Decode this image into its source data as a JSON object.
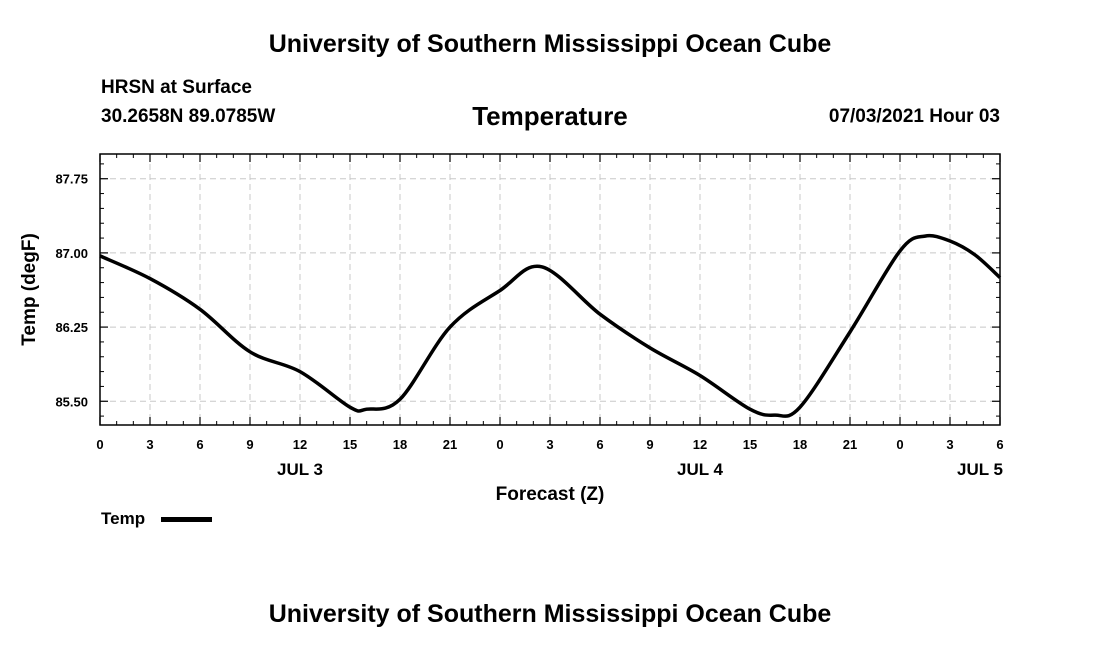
{
  "header": {
    "title": "University of Southern Mississippi Ocean Cube",
    "station": "HRSN at Surface",
    "coords": "30.2658N  89.0785W",
    "chart_title": "Temperature",
    "datetime": "07/03/2021 Hour 03"
  },
  "footer": {
    "title": "University of Southern Mississippi Ocean Cube"
  },
  "legend": {
    "label": "Temp",
    "color": "#000000"
  },
  "chart_data": {
    "type": "line",
    "title": "Temperature",
    "xlabel": "Forecast (Z)",
    "ylabel": "Temp (degF)",
    "xlim": [
      0,
      54
    ],
    "ylim": [
      85.26,
      88.0
    ],
    "x_ticks": [
      0,
      3,
      6,
      9,
      12,
      15,
      18,
      21,
      24,
      27,
      30,
      33,
      36,
      39,
      42,
      45,
      48,
      51,
      54
    ],
    "x_tick_labels": [
      "0",
      "3",
      "6",
      "9",
      "12",
      "15",
      "18",
      "21",
      "0",
      "3",
      "6",
      "9",
      "12",
      "15",
      "18",
      "21",
      "0",
      "3",
      "6"
    ],
    "y_ticks": [
      85.5,
      86.25,
      87.0,
      87.75
    ],
    "y_tick_labels": [
      "85.50",
      "86.25",
      "87.00",
      "87.75"
    ],
    "day_labels": [
      {
        "x": 12,
        "label": "JUL 3"
      },
      {
        "x": 36,
        "label": "JUL 4"
      },
      {
        "x": 52.8,
        "label": "JUL 5"
      }
    ],
    "grid": true,
    "legend_position": "bottom-left",
    "series": [
      {
        "name": "Temp",
        "color": "#000000",
        "x": [
          0,
          3,
          6,
          9,
          12,
          15,
          16,
          18,
          21,
          24,
          26.5,
          30,
          33,
          36,
          39,
          40.5,
          42,
          45,
          48,
          49.5,
          51,
          52.5,
          54
        ],
        "y": [
          86.97,
          86.74,
          86.43,
          86.0,
          85.8,
          85.44,
          85.42,
          85.52,
          86.25,
          86.62,
          86.86,
          86.38,
          86.04,
          85.76,
          85.42,
          85.36,
          85.44,
          86.2,
          87.02,
          87.17,
          87.12,
          86.98,
          86.75
        ]
      }
    ]
  }
}
